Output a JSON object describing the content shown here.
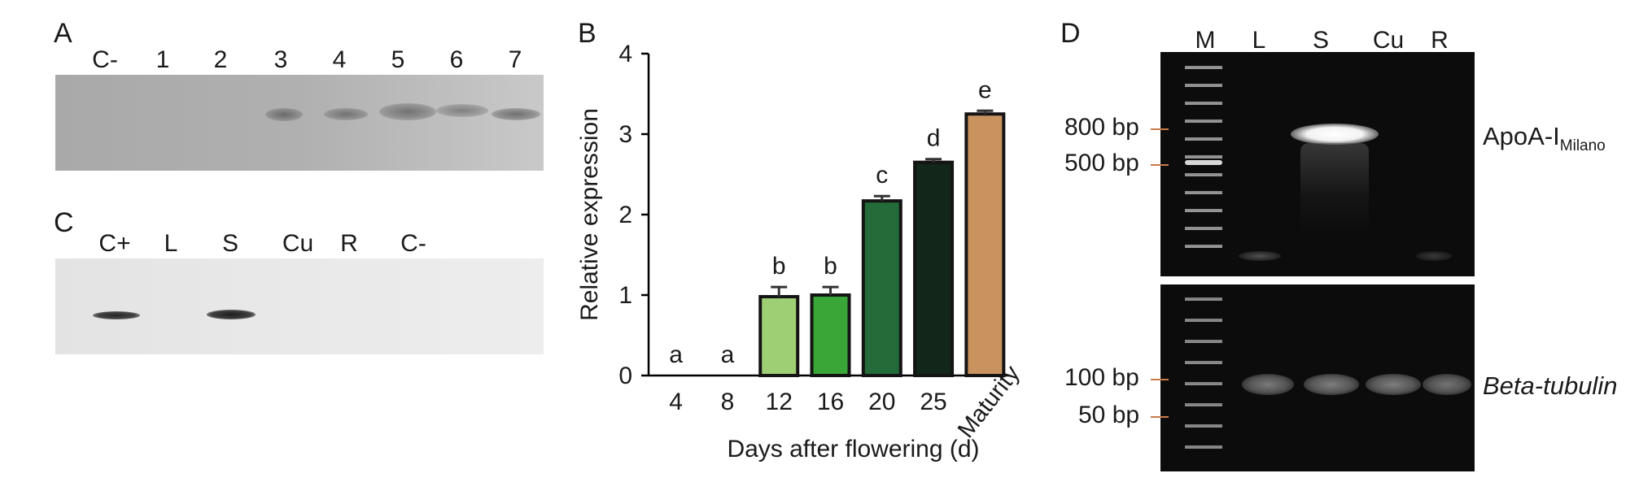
{
  "panel_a": {
    "letter": "A",
    "lanes": [
      "C-",
      "1",
      "2",
      "3",
      "4",
      "5",
      "6",
      "7"
    ]
  },
  "panel_c": {
    "letter": "C",
    "lanes": [
      "C+",
      "L",
      "S",
      "Cu",
      "R",
      "C-"
    ]
  },
  "panel_b": {
    "letter": "B",
    "chart_data": {
      "type": "bar",
      "categories": [
        "4",
        "8",
        "12",
        "16",
        "20",
        "25",
        "Maturity"
      ],
      "values": [
        0,
        0,
        0.98,
        1.0,
        2.17,
        2.65,
        3.25
      ],
      "errors": [
        0,
        0,
        0.12,
        0.1,
        0.06,
        0.04,
        0.04
      ],
      "significance_letters": [
        "a",
        "a",
        "b",
        "b",
        "c",
        "d",
        "e"
      ],
      "colors": [
        "#ffffff",
        "#ffffff",
        "#9fcf74",
        "#3aa637",
        "#236b39",
        "#13261a",
        "#c8935f"
      ],
      "xlabel": "Days after flowering (d)",
      "ylabel": "Relative expression",
      "ylim": [
        0,
        4
      ],
      "yticks": [
        "0",
        "1",
        "2",
        "3",
        "4"
      ]
    }
  },
  "panel_d": {
    "letter": "D",
    "lanes": [
      "M",
      "L",
      "S",
      "Cu",
      "R"
    ],
    "top_markers": [
      "800 bp",
      "500 bp"
    ],
    "bottom_markers": [
      "100 bp",
      "50 bp"
    ],
    "top_label_main": "ApoA-I",
    "top_label_sub": "Milano",
    "bottom_label": "Beta-tubulin",
    "marker_tick_color": "#c87a4a"
  }
}
